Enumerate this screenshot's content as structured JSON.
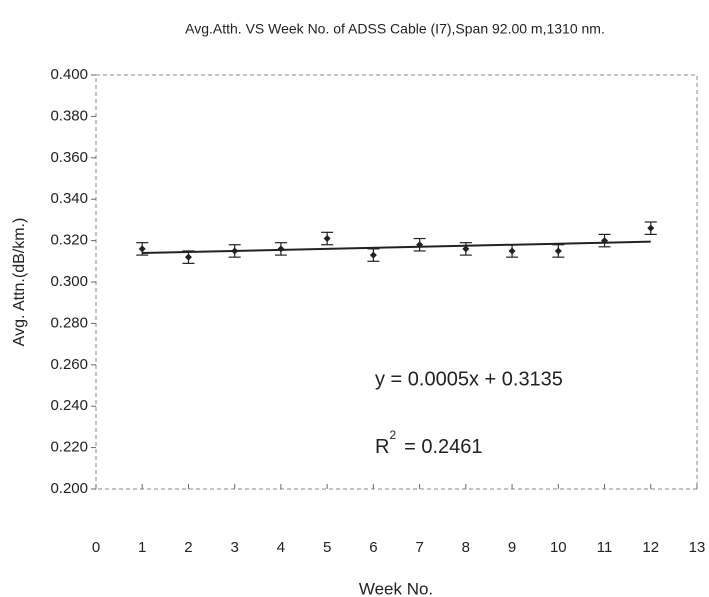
{
  "chart_data": {
    "type": "scatter",
    "title": "Avg.Atth. VS Week No. of ADSS Cable (I7),Span 92.00 m,1310 nm.",
    "x_label": "Week No.",
    "y_label": "Avg. Attn.(dB/km.)",
    "series": [
      {
        "color": "#222222",
        "x": [
          1,
          2,
          3,
          4,
          5,
          6,
          7,
          8,
          9,
          10,
          11,
          12
        ],
        "values": [
          0.316,
          0.312,
          0.315,
          0.316,
          0.321,
          0.313,
          0.318,
          0.316,
          0.315,
          0.315,
          0.32,
          0.326
        ],
        "errors": [
          0.003,
          0.003,
          0.003,
          0.003,
          0.003,
          0.003,
          0.003,
          0.003,
          0.003,
          0.003,
          0.003,
          0.003
        ]
      }
    ],
    "trendline": {
      "slope": 0.0005,
      "intercept": 0.3135,
      "x_range": [
        1,
        12
      ]
    },
    "equation": "y  = 0.0005x + 0.3135",
    "r_squared": {
      "symbol": "R",
      "exponent": "2",
      "text": "= 0.2461"
    },
    "xlim": [
      0,
      13
    ],
    "xticks": [
      0,
      1,
      2,
      3,
      4,
      5,
      6,
      7,
      8,
      9,
      10,
      11,
      12,
      13
    ],
    "ylim": [
      0.2,
      0.4
    ],
    "yticks": [
      {
        "value": 0.2,
        "label": "0.200"
      },
      {
        "value": 0.22,
        "label": "0.220"
      },
      {
        "value": 0.24,
        "label": "0.240"
      },
      {
        "value": 0.26,
        "label": "0.260"
      },
      {
        "value": 0.28,
        "label": "0.280"
      },
      {
        "value": 0.3,
        "label": "0.300"
      },
      {
        "value": 0.32,
        "label": "0.320"
      },
      {
        "value": 0.34,
        "label": "0.340"
      },
      {
        "value": 0.36,
        "label": "0.360"
      },
      {
        "value": 0.38,
        "label": "0.380"
      },
      {
        "value": 0.4,
        "label": "0.400"
      }
    ],
    "grid": false
  }
}
